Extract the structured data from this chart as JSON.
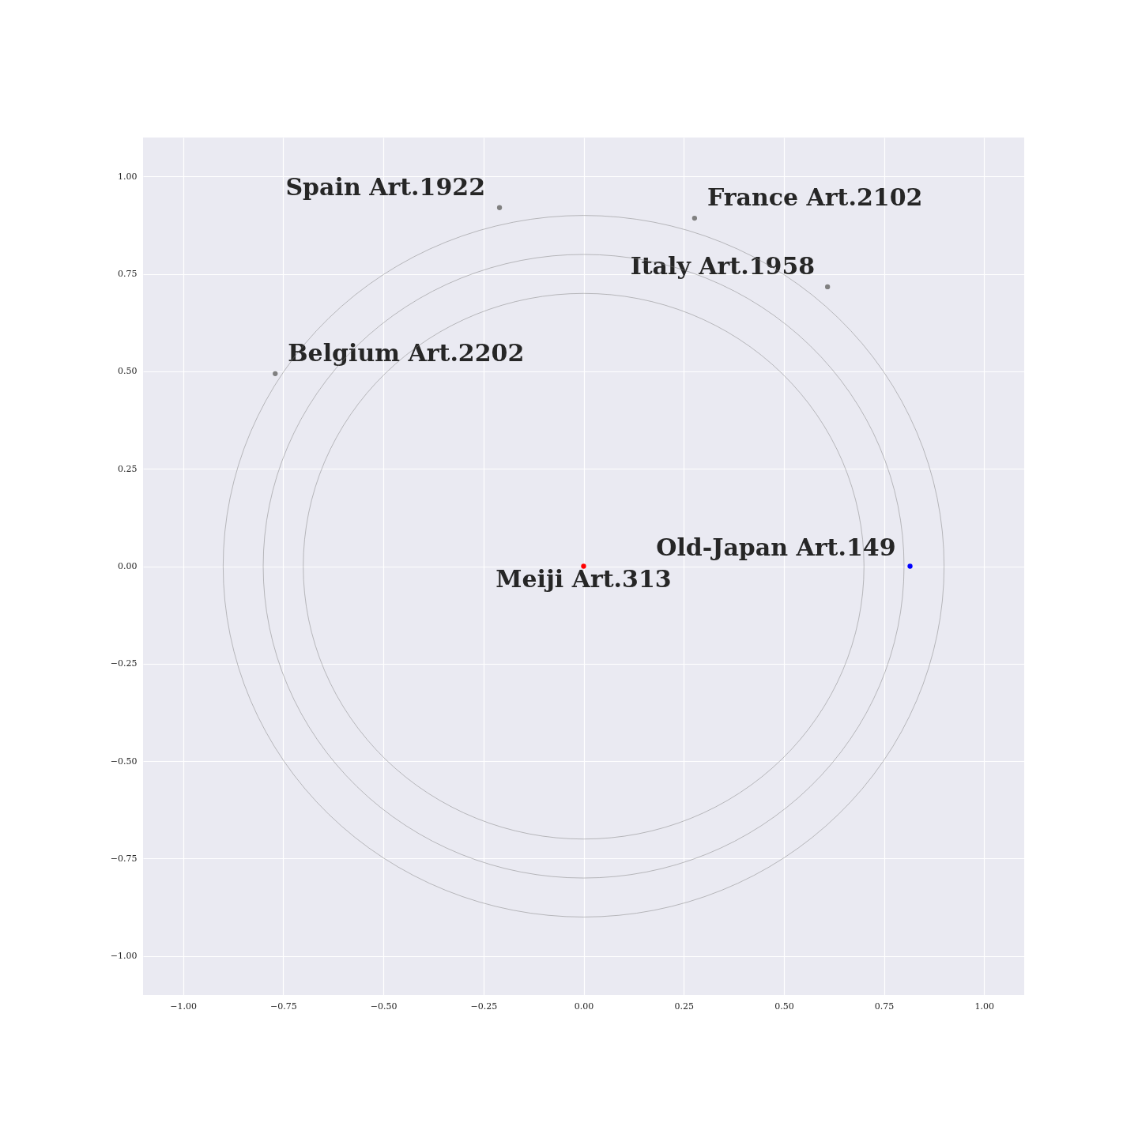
{
  "chart_data": {
    "type": "scatter",
    "xlim": [
      -1.1,
      1.1
    ],
    "ylim": [
      -1.1,
      1.1
    ],
    "xticks": [
      {
        "value": -1,
        "label": "−1.00"
      },
      {
        "value": -0.75,
        "label": "−0.75"
      },
      {
        "value": -0.5,
        "label": "−0.50"
      },
      {
        "value": -0.25,
        "label": "−0.25"
      },
      {
        "value": 0,
        "label": "0.00"
      },
      {
        "value": 0.25,
        "label": "0.25"
      },
      {
        "value": 0.5,
        "label": "0.50"
      },
      {
        "value": 0.75,
        "label": "0.75"
      },
      {
        "value": 1,
        "label": "1.00"
      }
    ],
    "yticks": [
      {
        "value": -1,
        "label": "−1.00"
      },
      {
        "value": -0.75,
        "label": "−0.75"
      },
      {
        "value": -0.5,
        "label": "−0.50"
      },
      {
        "value": -0.25,
        "label": "−0.25"
      },
      {
        "value": 0,
        "label": "0.00"
      },
      {
        "value": 0.25,
        "label": "0.25"
      },
      {
        "value": 0.5,
        "label": "0.50"
      },
      {
        "value": 0.75,
        "label": "0.75"
      },
      {
        "value": 1,
        "label": "1.00"
      }
    ],
    "grid": true,
    "series": [
      {
        "type": "scatter",
        "marker": "circle",
        "x": [
          0,
          0.815,
          -0.21,
          0.277,
          0.609,
          -0.77
        ],
        "values": [
          0,
          0,
          0.92,
          0.893,
          0.717,
          0.494
        ],
        "colors": [
          "#ff0000",
          "#0000ff",
          "#808080",
          "#808080",
          "#808080",
          "#808080"
        ]
      }
    ],
    "annotations": [
      {
        "text": "Meiji Art.313",
        "x": 0,
        "y": 0
      },
      {
        "text": "Old-Japan Art.149",
        "x": 0.815,
        "y": 0
      },
      {
        "text": "Spain Art.1922",
        "x": -0.21,
        "y": 0.92
      },
      {
        "text": "France Art.2102",
        "x": 0.277,
        "y": 0.893
      },
      {
        "text": "Italy Art.1958",
        "x": 0.609,
        "y": 0.717
      },
      {
        "text": "Belgium Art.2202",
        "x": -0.77,
        "y": 0.494
      }
    ]
  }
}
